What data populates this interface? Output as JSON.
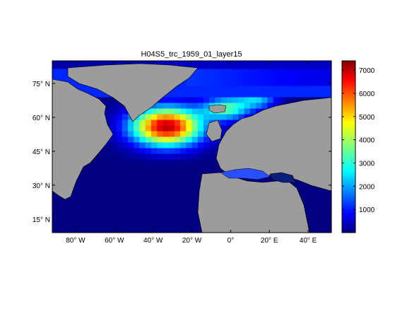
{
  "chart_data": {
    "type": "heatmap",
    "title": "H04S5_trc_1959_01_layer15",
    "map_region": "North Atlantic",
    "lon_range": [
      -92,
      52
    ],
    "lat_range": [
      9,
      85
    ],
    "lon_ticks": [
      {
        "value": -80,
        "label": "80° W"
      },
      {
        "value": -60,
        "label": "60° W"
      },
      {
        "value": -40,
        "label": "40° W"
      },
      {
        "value": -20,
        "label": "20° W"
      },
      {
        "value": 0,
        "label": "0°"
      },
      {
        "value": 20,
        "label": "20° E"
      },
      {
        "value": 40,
        "label": "40° E"
      }
    ],
    "lat_ticks": [
      {
        "value": 75,
        "label": "75° N"
      },
      {
        "value": 60,
        "label": "60° N"
      },
      {
        "value": 45,
        "label": "45° N"
      },
      {
        "value": 30,
        "label": "30° N"
      },
      {
        "value": 15,
        "label": "15° N"
      }
    ],
    "colorbar": {
      "range": [
        0,
        7400
      ],
      "ticks": [
        1000,
        2000,
        3000,
        4000,
        5000,
        6000,
        7000
      ],
      "colormap": "jet",
      "position": "right"
    },
    "colors": {
      "land": "#9c9c9c",
      "missing": "#ffffff",
      "low": "#000080",
      "high": "#800000"
    },
    "value_regions": [
      {
        "area": "subtropical North Atlantic",
        "value": 0
      },
      {
        "area": "Irminger and Labrador Sea",
        "value": 6500
      },
      {
        "area": "northeast Atlantic 45-55N",
        "value": 4500
      },
      {
        "area": "Norwegian Sea",
        "value": 3000
      },
      {
        "area": "Greenland Sea",
        "value": 1200
      },
      {
        "area": "Arctic margin",
        "value": 500
      },
      {
        "area": "Mediterranean Sea",
        "value": 800
      }
    ]
  }
}
